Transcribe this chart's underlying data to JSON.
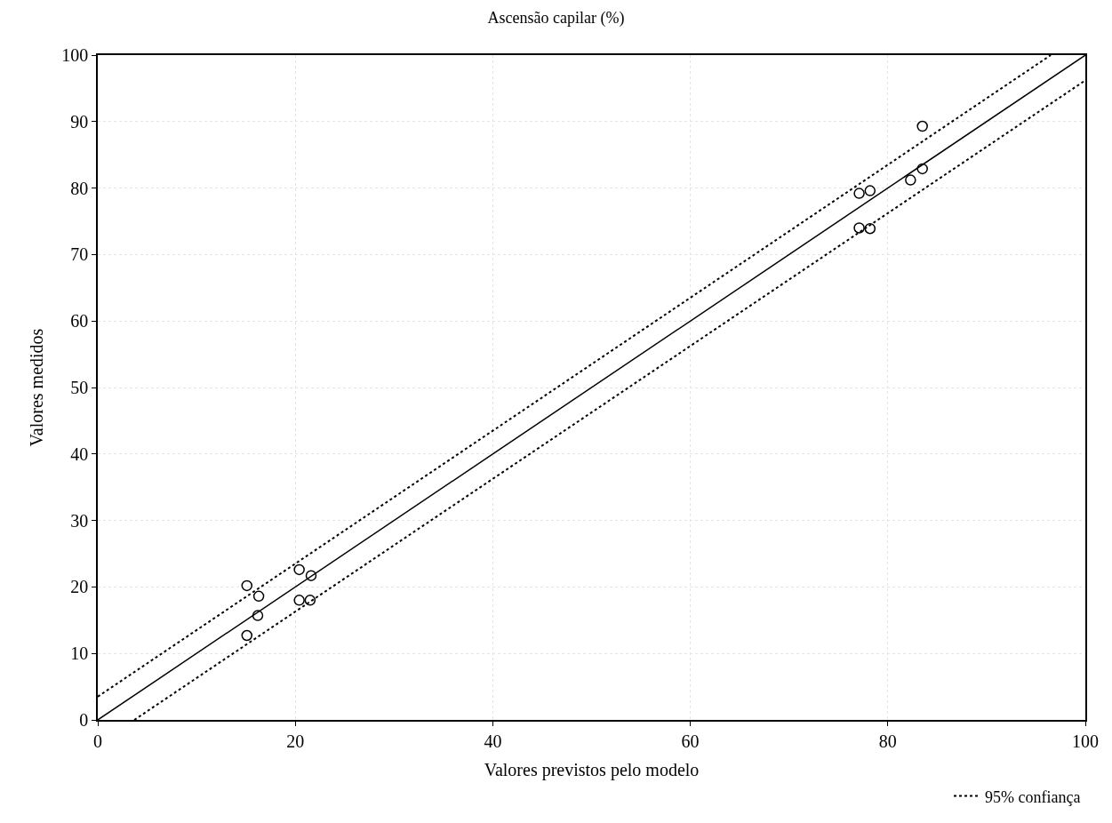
{
  "chart_data": {
    "type": "scatter",
    "title": "Ascensão capilar (%)",
    "xlabel": "Valores previstos pelo modelo",
    "ylabel": "Valores medidos",
    "xlim": [
      0,
      100
    ],
    "ylim": [
      0,
      100
    ],
    "xticks": [
      0,
      20,
      40,
      60,
      80,
      100
    ],
    "yticks": [
      0,
      10,
      20,
      30,
      40,
      50,
      60,
      70,
      80,
      90,
      100
    ],
    "grid": true,
    "legend": "bottom right",
    "marker": "circle",
    "series": [
      {
        "color": "#000000",
        "x": [
          15.1,
          16.3,
          16.2,
          15.1,
          20.4,
          21.6,
          20.4,
          21.5,
          77.1,
          78.2,
          77.1,
          78.2,
          82.3,
          83.5,
          83.5
        ],
        "values": [
          20.2,
          18.6,
          15.7,
          12.7,
          22.6,
          21.7,
          18.0,
          18.0,
          79.2,
          79.6,
          74.0,
          73.9,
          81.2,
          82.9,
          89.3
        ]
      },
      {
        "type": "line",
        "color": "#000000",
        "line_style": "solid",
        "marker": "none",
        "x": [
          0,
          100
        ],
        "values": [
          0,
          100
        ]
      },
      {
        "type": "line",
        "name": "95% confiança",
        "color": "#000000",
        "line_style": "dotted",
        "marker": "none",
        "x": [
          0,
          96.5
        ],
        "values": [
          3.5,
          100
        ]
      },
      {
        "type": "line",
        "color": "#000000",
        "line_style": "dotted",
        "marker": "none",
        "x": [
          3.7,
          100
        ],
        "values": [
          0,
          96.2
        ]
      }
    ]
  }
}
